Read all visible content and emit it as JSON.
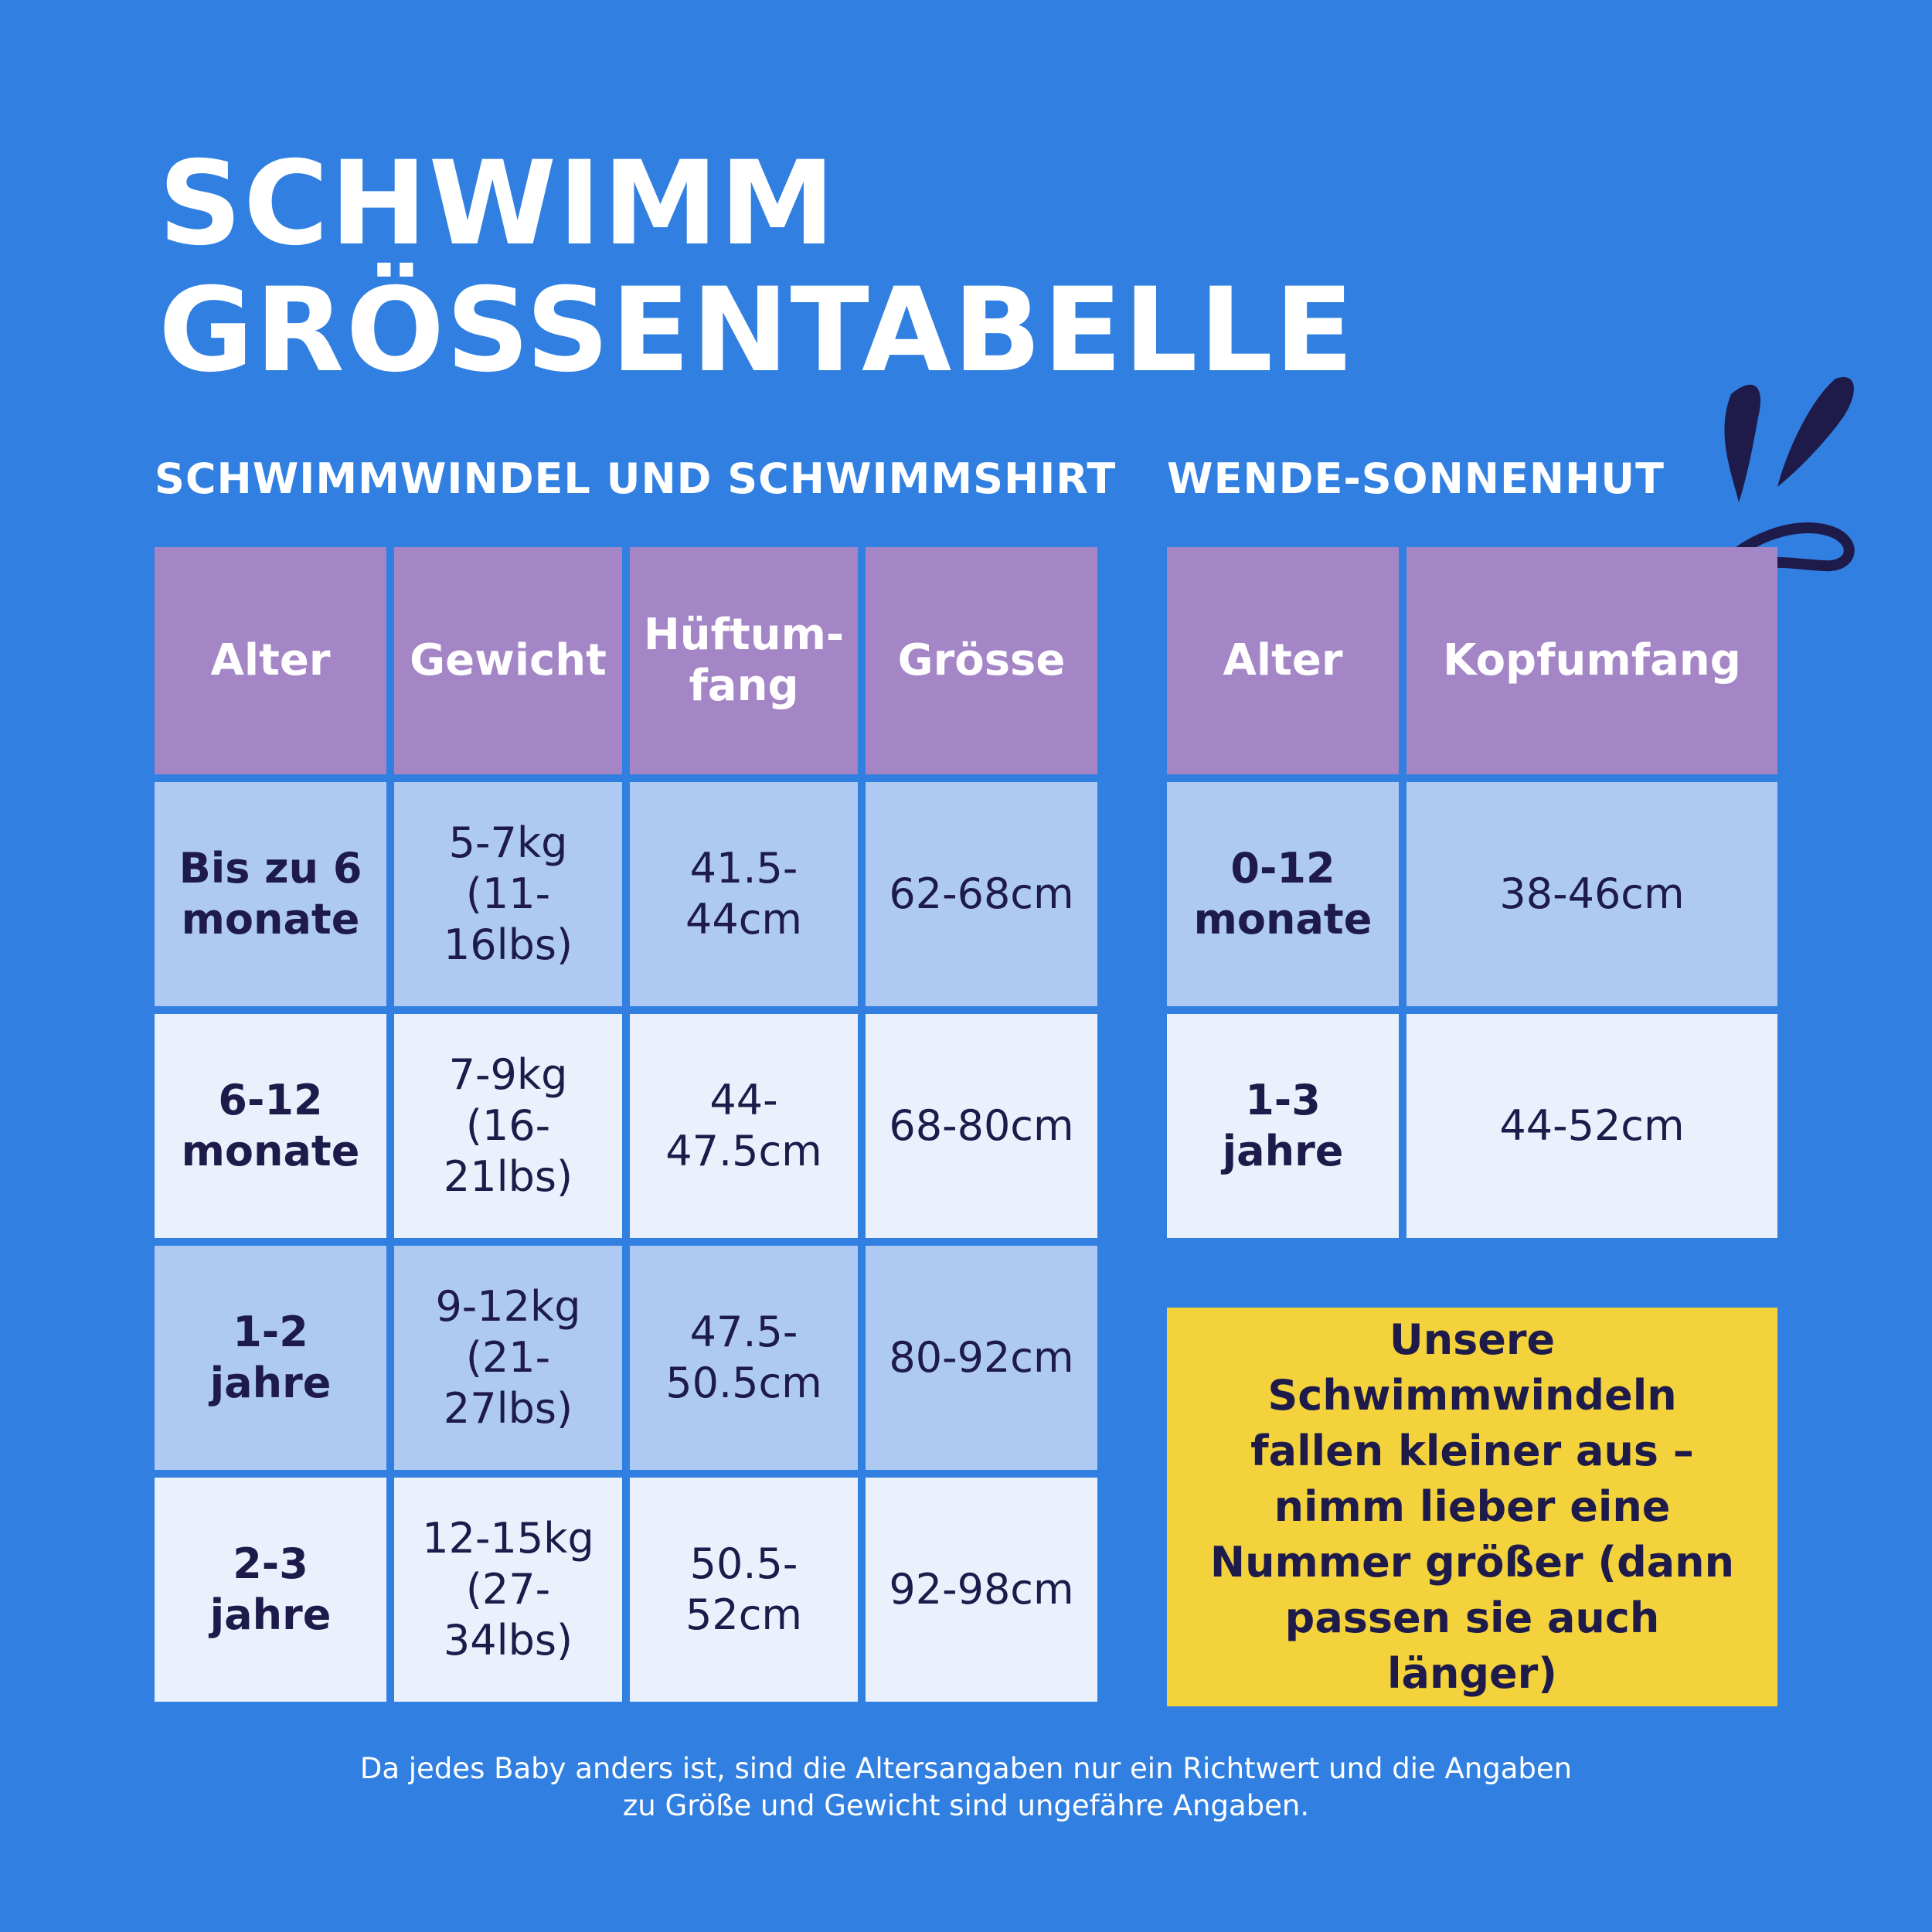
{
  "title": {
    "line1": "SCHWIMM",
    "line2": "GRÖSSENTABELLE"
  },
  "left_section": {
    "heading": "SCHWIMMWINDEL UND SCHWIMMSHIRT",
    "columns": [
      "Alter",
      "Gewicht",
      "Hüftum-\nfang",
      "Grösse"
    ],
    "rows": [
      [
        "Bis zu 6\nmonate",
        "5-7kg\n(11-16lbs)",
        "41.5-\n44cm",
        "62-68cm"
      ],
      [
        "6-12\nmonate",
        "7-9kg\n(16-21lbs)",
        "44-\n47.5cm",
        "68-80cm"
      ],
      [
        "1-2\njahre",
        "9-12kg\n(21-27lbs)",
        "47.5-\n50.5cm",
        "80-92cm"
      ],
      [
        "2-3\njahre",
        "12-15kg\n(27-34lbs)",
        "50.5-\n52cm",
        "92-98cm"
      ]
    ]
  },
  "right_section": {
    "heading": "WENDE-SONNENHUT",
    "columns": [
      "Alter",
      "Kopfumfang"
    ],
    "rows": [
      [
        "0-12\nmonate",
        "38-46cm"
      ],
      [
        "1-3\njahre",
        "44-52cm"
      ]
    ]
  },
  "note": "Unsere Schwimmwindeln fallen kleiner aus – nimm lieber eine Nummer größer (dann passen sie auch länger)",
  "footer": {
    "line1": "Da jedes Baby anders ist, sind die Altersangaben nur ein Richtwert und die Angaben",
    "line2": "zu Größe und Gewicht sind ungefähre Angaben."
  },
  "colors": {
    "background": "#3180e1",
    "header": "#a486c6",
    "row_dark": "#aecaf3",
    "row_light": "#eaf1fc",
    "note": "#f3d23c",
    "text_dark": "#1e1b4b"
  },
  "decoration": {
    "icon": "splash-drops-icon"
  }
}
